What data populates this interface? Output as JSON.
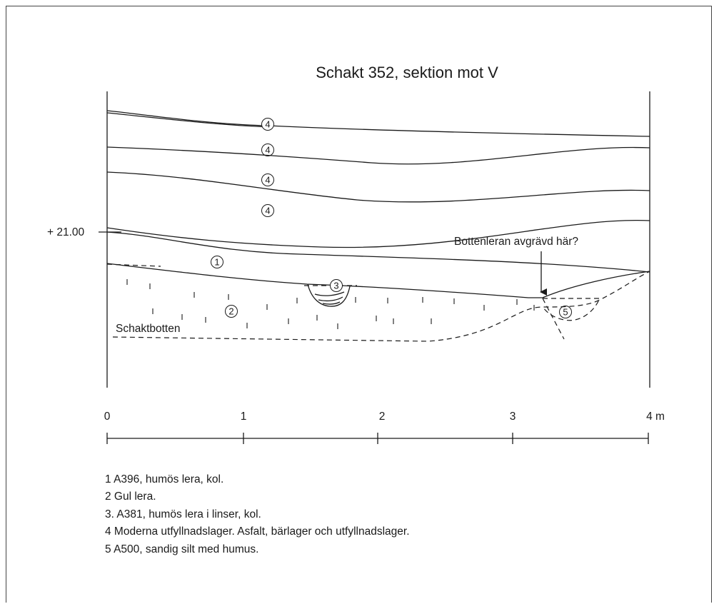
{
  "title": "Schakt 352, sektion mot V",
  "elevation_label": "+ 21.00",
  "annotation": "Bottenleran avgrävd här?",
  "bottom_label": "Schaktbotten",
  "layer_markers": [
    "4",
    "4",
    "4",
    "4",
    "1",
    "3",
    "2",
    "5"
  ],
  "scale": {
    "ticks": [
      "0",
      "1",
      "2",
      "3"
    ],
    "end_label": "4 m"
  },
  "legend": [
    "1  A396, humös lera, kol.",
    "2  Gul lera.",
    "3. A381, humös lera i linser, kol.",
    "4  Moderna utfyllnadslager. Asfalt, bärlager och utfyllnadslager.",
    "5  A500, sandig silt med humus."
  ]
}
